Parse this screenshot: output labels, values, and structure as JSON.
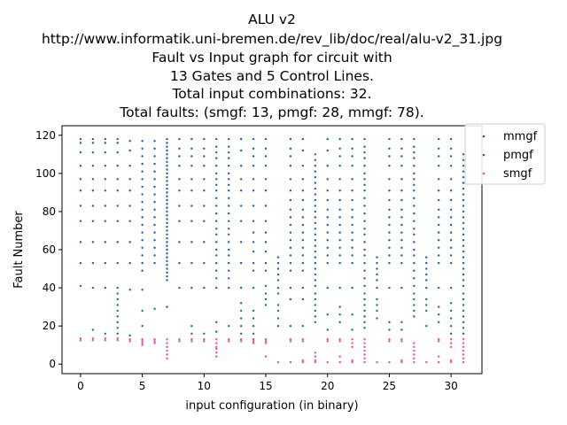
{
  "chart_data": {
    "type": "scatter",
    "title_lines": [
      "ALU v2",
      "http://www.informatik.uni-bremen.de/rev_lib/doc/real/alu-v2_31.jpg",
      "Fault vs Input graph for circuit with",
      "13 Gates and 5 Control Lines.",
      "Total input combinations: 32.",
      "Total faults: (smgf: 13, pmgf: 28, mmgf: 78)."
    ],
    "xlabel": "input configuration (in binary)",
    "ylabel": "Fault Number",
    "xlim": [
      -1.5,
      32.5
    ],
    "ylim": [
      -5,
      125
    ],
    "xticks": [
      0,
      5,
      10,
      15,
      20,
      25,
      30
    ],
    "yticks": [
      0,
      20,
      40,
      60,
      80,
      100,
      120
    ],
    "grid": false,
    "legend_position": "upper-right-outside",
    "series": [
      {
        "name": "mmgf",
        "color": "#1f5f9e",
        "points_by_x": {
          "0": [
            118,
            116,
            111,
            104,
            97,
            91,
            83,
            75,
            64,
            53
          ],
          "1": [
            118,
            116,
            111,
            104,
            97,
            91,
            83,
            75,
            64,
            53
          ],
          "2": [
            118,
            116,
            111,
            104,
            97,
            91,
            83,
            75,
            64,
            53
          ],
          "3": [
            118,
            116,
            111,
            104,
            97,
            91,
            83,
            75,
            64,
            53
          ],
          "4": [
            117,
            112,
            104,
            97,
            91,
            83,
            75,
            64,
            53
          ],
          "5": [
            117,
            113,
            109,
            105,
            101,
            97,
            93,
            89,
            85,
            81,
            77,
            73,
            69,
            65,
            61,
            57,
            53,
            49
          ],
          "6": [
            117,
            113,
            109,
            105,
            101,
            97,
            93,
            89,
            85,
            81,
            77,
            73,
            69,
            65,
            61,
            57,
            53
          ],
          "7": [
            118,
            116,
            114,
            112,
            110,
            108,
            106,
            104,
            102,
            100,
            98,
            96,
            94,
            92,
            90,
            88,
            86,
            84,
            82,
            80,
            78,
            76,
            74,
            72,
            70,
            68,
            66,
            64,
            62,
            60,
            58,
            56,
            54,
            52,
            50,
            48,
            46,
            44
          ],
          "8": [
            118,
            113,
            109,
            104,
            97,
            91,
            83,
            75,
            64,
            53
          ],
          "9": [
            118,
            113,
            109,
            104,
            97,
            91,
            83,
            75,
            64,
            53
          ],
          "10": [
            118,
            113,
            109,
            104,
            97,
            91,
            83,
            75,
            64,
            53
          ],
          "11": [
            118,
            114,
            111,
            108,
            104,
            100,
            97,
            94,
            91,
            87,
            83,
            79,
            75,
            71,
            68,
            64,
            60,
            57,
            53,
            49,
            45
          ],
          "12": [
            118,
            114,
            111,
            108,
            104,
            100,
            97,
            94,
            91,
            87,
            83,
            79,
            75,
            71,
            68,
            64,
            60,
            57,
            53,
            49,
            45
          ],
          "13": [
            118,
            112,
            104,
            97,
            91,
            83,
            75,
            64,
            53
          ],
          "14": [
            118,
            113,
            109,
            104,
            97,
            91,
            83,
            75,
            69,
            64,
            59,
            53,
            49
          ],
          "15": [
            118,
            113,
            109,
            104,
            97,
            91,
            83,
            75,
            69,
            64,
            59,
            53,
            49
          ],
          "16": [
            56,
            53,
            50,
            47,
            44
          ],
          "17": [
            118,
            113,
            109,
            104,
            97,
            91,
            86,
            81,
            77,
            73,
            69,
            65,
            61,
            57,
            53,
            49
          ],
          "18": [
            118,
            112,
            104,
            97,
            91,
            86,
            81,
            77,
            73,
            69,
            65,
            61,
            57,
            53,
            49
          ],
          "19": [
            110,
            107,
            104,
            101,
            98,
            95,
            92,
            89,
            86,
            83,
            80,
            77,
            74,
            71,
            68,
            65,
            62,
            59,
            56,
            53,
            50,
            47,
            44
          ],
          "20": [
            118,
            112,
            104,
            97,
            91,
            86,
            81,
            77,
            73,
            69,
            65,
            61,
            57,
            53
          ],
          "21": [
            118,
            113,
            109,
            104,
            97,
            91,
            86,
            81,
            77,
            73,
            69,
            65,
            61,
            57,
            53
          ],
          "22": [
            118,
            113,
            109,
            104,
            97,
            91,
            86,
            81,
            77,
            73,
            69,
            65,
            61,
            57,
            53
          ],
          "23": [
            118,
            114,
            111,
            108,
            104,
            100,
            97,
            94,
            91,
            87,
            83,
            79,
            75,
            71,
            68,
            64,
            60,
            57,
            53,
            49,
            45
          ],
          "24": [
            56,
            53,
            50,
            47,
            44
          ],
          "25": [
            118,
            113,
            109,
            104,
            97,
            91,
            86,
            81,
            77,
            73,
            69,
            65,
            61,
            57,
            53
          ],
          "26": [
            118,
            113,
            109,
            104,
            97,
            91,
            86,
            81,
            77,
            73,
            69,
            65,
            61,
            57,
            53
          ],
          "27": [
            118,
            114,
            111,
            108,
            104,
            100,
            97,
            94,
            91,
            87,
            83,
            79,
            75,
            71,
            68,
            64,
            60,
            57,
            53,
            49,
            45
          ],
          "28": [
            56,
            53,
            50,
            47,
            44
          ],
          "29": [
            118,
            113,
            109,
            104,
            97,
            91,
            86,
            81,
            77,
            73,
            69,
            65,
            61,
            57,
            53
          ],
          "30": [
            118,
            113,
            109,
            104,
            97,
            91,
            86,
            81,
            77,
            73,
            69,
            65,
            61,
            57,
            53
          ],
          "31": [
            110,
            107,
            104,
            101,
            98,
            95,
            92,
            89,
            86,
            83,
            80,
            77,
            74,
            71,
            68,
            65,
            62,
            59,
            56,
            53,
            50,
            47,
            44
          ]
        }
      },
      {
        "name": "pmgf",
        "color": "#1a7a3c",
        "points_by_x": {
          "0": [
            41
          ],
          "1": [
            40,
            18
          ],
          "2": [
            40,
            16
          ],
          "3": [
            40,
            37,
            34,
            31,
            28,
            25,
            22,
            19,
            16
          ],
          "4": [
            39,
            15
          ],
          "5": [
            39,
            28,
            20
          ],
          "6": [
            29
          ],
          "7": [
            30
          ],
          "8": [
            40
          ],
          "9": [
            40,
            20,
            16
          ],
          "10": [
            40,
            16
          ],
          "11": [
            40,
            22,
            17
          ],
          "12": [
            40,
            20
          ],
          "13": [
            40,
            32,
            28,
            24,
            20,
            16
          ],
          "14": [
            40,
            28,
            24,
            20,
            16
          ],
          "15": [
            41,
            37,
            34,
            31
          ],
          "16": [
            40,
            37,
            31,
            28,
            24,
            20
          ],
          "17": [
            40,
            34,
            20
          ],
          "18": [
            40,
            34,
            20
          ],
          "19": [
            41,
            37,
            34,
            31,
            28,
            25,
            22
          ],
          "20": [
            40,
            26,
            18
          ],
          "21": [
            40,
            30,
            26,
            22
          ],
          "22": [
            40,
            26,
            18
          ],
          "23": [
            41,
            37,
            34,
            31,
            28,
            25,
            22,
            19
          ],
          "24": [
            40,
            34,
            31,
            28,
            24
          ],
          "25": [
            40,
            22,
            18
          ],
          "26": [
            40,
            22,
            18
          ],
          "27": [
            41,
            37,
            34,
            31,
            28,
            25
          ],
          "28": [
            40,
            34,
            31,
            28,
            20
          ],
          "29": [
            40,
            30,
            26,
            22
          ],
          "30": [
            40,
            32,
            28,
            24,
            20,
            16
          ],
          "31": [
            41,
            37,
            34,
            31,
            28,
            25,
            22,
            19,
            16
          ]
        }
      },
      {
        "name": "smgf",
        "color": "#e8509a",
        "points_by_x": {
          "0": [
            13.5,
            12.5
          ],
          "1": [
            13.5,
            12.5
          ],
          "2": [
            13.5,
            12.5
          ],
          "3": [
            13.5,
            12.5
          ],
          "4": [
            13,
            12
          ],
          "5": [
            13,
            12,
            11,
            10
          ],
          "6": [
            13,
            12,
            11
          ],
          "7": [
            13,
            11,
            9,
            7,
            5,
            3
          ],
          "8": [
            13,
            12
          ],
          "9": [
            13,
            12
          ],
          "10": [
            13,
            12
          ],
          "11": [
            13,
            11,
            9,
            8,
            6,
            4
          ],
          "12": [
            13,
            12
          ],
          "13": [
            13,
            12
          ],
          "14": [
            13,
            12,
            11
          ],
          "15": [
            13,
            12,
            11,
            4
          ],
          "16": [
            1
          ],
          "17": [
            13,
            12,
            1
          ],
          "18": [
            13,
            12,
            2,
            1
          ],
          "19": [
            6,
            4,
            2,
            1
          ],
          "20": [
            13,
            12,
            1
          ],
          "21": [
            13,
            12,
            4,
            1
          ],
          "22": [
            13,
            11,
            9,
            2,
            1
          ],
          "23": [
            13,
            11,
            9,
            7,
            5,
            3,
            1
          ],
          "24": [
            1
          ],
          "25": [
            13,
            12,
            1
          ],
          "26": [
            13,
            12,
            2,
            1
          ],
          "27": [
            11,
            9,
            7,
            5,
            3,
            1
          ],
          "28": [
            1
          ],
          "29": [
            13,
            12,
            4,
            1
          ],
          "30": [
            13,
            11,
            9,
            2,
            1
          ],
          "31": [
            13,
            11,
            9,
            7,
            5,
            3,
            1
          ]
        }
      }
    ]
  }
}
